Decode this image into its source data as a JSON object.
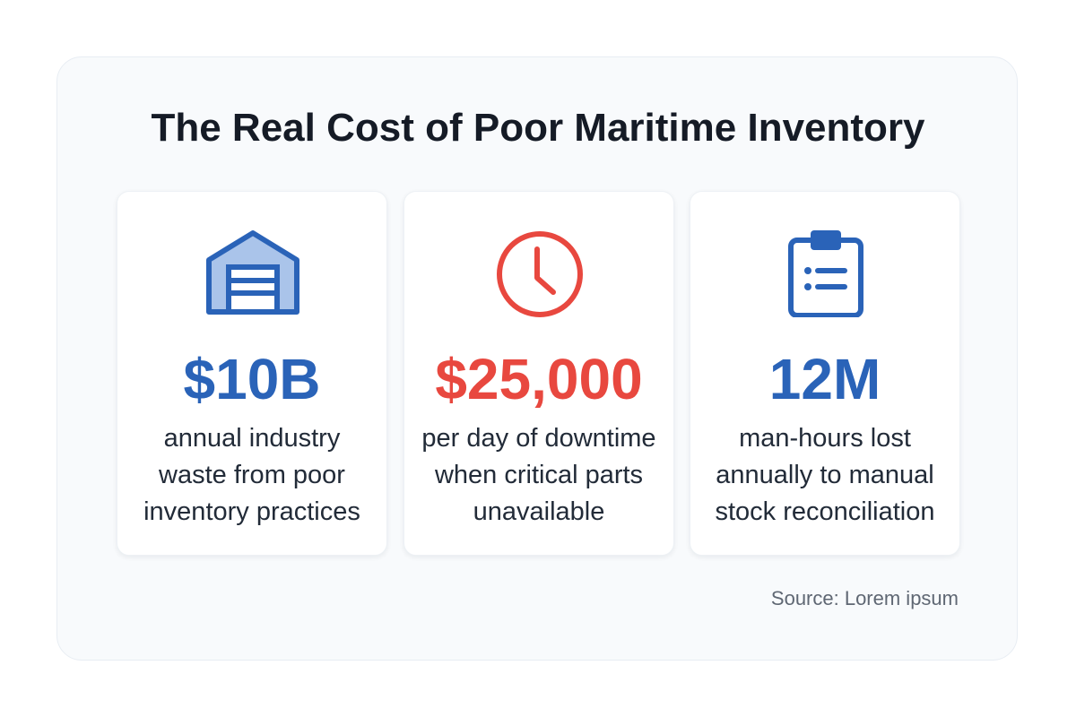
{
  "header": {
    "title": "The Real Cost of Poor Maritime Inventory"
  },
  "cards": [
    {
      "value": "$10B",
      "lines": [
        "annual industry",
        "waste from poor",
        "inventory practices"
      ]
    },
    {
      "value": "$25,000",
      "lines": [
        "per day of downtime",
        "when critical parts",
        "unavailable"
      ]
    },
    {
      "value": "12M",
      "lines": [
        "man-hours lost",
        "annually to manual",
        "stock reconciliation"
      ]
    }
  ],
  "footer": {
    "source": "Source: Lorem ipsum"
  }
}
